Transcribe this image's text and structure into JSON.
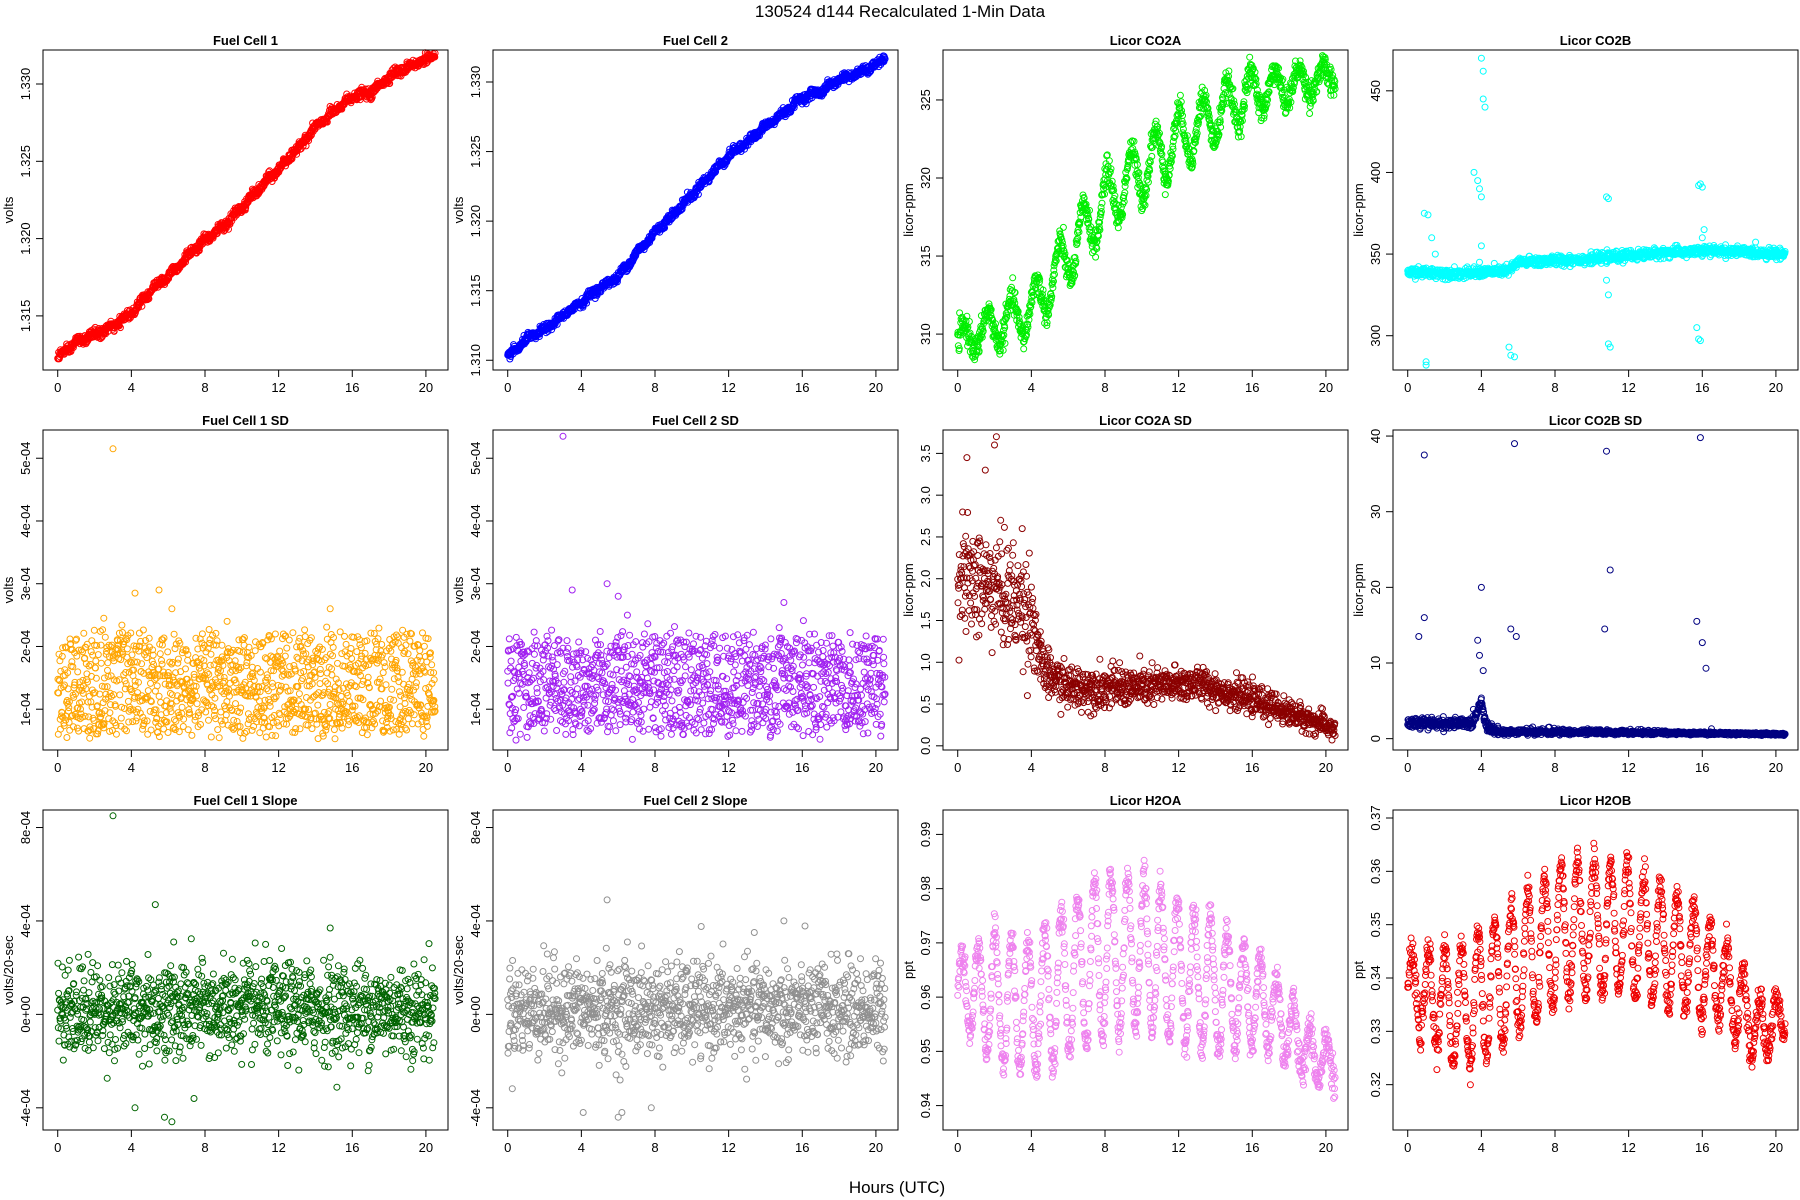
{
  "figure": {
    "title": "130524    d144    Recalculated 1-Min Data",
    "xlabel": "Hours (UTC)"
  },
  "chart_data": [
    {
      "type": "scatter",
      "title": "Fuel Cell 1",
      "ylabel": "volts",
      "color": "#ff0000",
      "xlim": [
        -0.8,
        21.2
      ],
      "ylim": [
        1.3115,
        1.3322
      ],
      "yticks": [
        1.315,
        1.32,
        1.325,
        1.33
      ],
      "ytick_labels": [
        "1.315",
        "1.320",
        "1.325",
        "1.330"
      ],
      "xticks": [
        0,
        4,
        8,
        12,
        16,
        20
      ],
      "xtick_labels": [
        "0",
        "4",
        "8",
        "12",
        "16",
        "20"
      ],
      "pattern": "trend",
      "points": [
        [
          0,
          1.3123
        ],
        [
          1,
          1.3133
        ],
        [
          2,
          1.3138
        ],
        [
          3,
          1.3143
        ],
        [
          4,
          1.3152
        ],
        [
          5,
          1.3166
        ],
        [
          6,
          1.3176
        ],
        [
          7,
          1.3188
        ],
        [
          8,
          1.3199
        ],
        [
          9,
          1.3208
        ],
        [
          10,
          1.322
        ],
        [
          11,
          1.3233
        ],
        [
          12,
          1.3245
        ],
        [
          13,
          1.3258
        ],
        [
          14,
          1.3272
        ],
        [
          15,
          1.3282
        ],
        [
          16,
          1.3292
        ],
        [
          17,
          1.3294
        ],
        [
          18,
          1.3305
        ],
        [
          19,
          1.3311
        ],
        [
          20,
          1.3316
        ],
        [
          20.5,
          1.3318
        ]
      ],
      "noise": 0.0003
    },
    {
      "type": "scatter",
      "title": "Fuel Cell 2",
      "ylabel": "volts",
      "color": "#0000ff",
      "xlim": [
        -0.8,
        21.2
      ],
      "ylim": [
        1.3093,
        1.3323
      ],
      "yticks": [
        1.31,
        1.315,
        1.32,
        1.325,
        1.33
      ],
      "ytick_labels": [
        "1.310",
        "1.315",
        "1.320",
        "1.325",
        "1.330"
      ],
      "xticks": [
        0,
        4,
        8,
        12,
        16,
        20
      ],
      "xtick_labels": [
        "0",
        "4",
        "8",
        "12",
        "16",
        "20"
      ],
      "pattern": "trend",
      "points": [
        [
          0,
          1.3102
        ],
        [
          1,
          1.3115
        ],
        [
          2,
          1.3122
        ],
        [
          3,
          1.3132
        ],
        [
          4,
          1.3142
        ],
        [
          5,
          1.3152
        ],
        [
          6,
          1.316
        ],
        [
          7,
          1.3177
        ],
        [
          8,
          1.3192
        ],
        [
          9,
          1.3205
        ],
        [
          10,
          1.3219
        ],
        [
          11,
          1.3233
        ],
        [
          12,
          1.3247
        ],
        [
          13,
          1.3257
        ],
        [
          14,
          1.3268
        ],
        [
          15,
          1.3278
        ],
        [
          16,
          1.3289
        ],
        [
          17,
          1.3293
        ],
        [
          18,
          1.3302
        ],
        [
          19,
          1.3306
        ],
        [
          20,
          1.3312
        ],
        [
          20.5,
          1.3318
        ]
      ],
      "noise": 0.0003
    },
    {
      "type": "scatter",
      "title": "Licor CO2A",
      "ylabel": "licor-ppm",
      "color": "#00ee00",
      "xlim": [
        -0.8,
        21.2
      ],
      "ylim": [
        307.7,
        328.2
      ],
      "yticks": [
        310,
        315,
        320,
        325
      ],
      "ytick_labels": [
        "310",
        "315",
        "320",
        "325"
      ],
      "xticks": [
        0,
        4,
        8,
        12,
        16,
        20
      ],
      "xtick_labels": [
        "0",
        "4",
        "8",
        "12",
        "16",
        "20"
      ],
      "pattern": "osc",
      "base": [
        [
          0,
          309.5
        ],
        [
          4,
          311.5
        ],
        [
          8,
          318.5
        ],
        [
          12,
          322.5
        ],
        [
          16,
          325.5
        ],
        [
          20.5,
          326.5
        ]
      ],
      "amp": [
        [
          0,
          0.8
        ],
        [
          2,
          1.2
        ],
        [
          4,
          1.5
        ],
        [
          8,
          1.9
        ],
        [
          12,
          1.8
        ],
        [
          16,
          1.4
        ],
        [
          20.5,
          0.6
        ]
      ],
      "period": 1.3,
      "noise": 0.4
    },
    {
      "type": "scatter",
      "title": "Licor CO2B",
      "ylabel": "licor-ppm",
      "color": "#00ffff",
      "xlim": [
        -0.8,
        21.2
      ],
      "ylim": [
        279,
        475
      ],
      "yticks": [
        300,
        350,
        400,
        450
      ],
      "ytick_labels": [
        "300",
        "350",
        "400",
        "450"
      ],
      "xticks": [
        0,
        4,
        8,
        12,
        16,
        20
      ],
      "xtick_labels": [
        "0",
        "4",
        "8",
        "12",
        "16",
        "20"
      ],
      "pattern": "spiky",
      "base": [
        [
          0,
          339
        ],
        [
          3,
          338
        ],
        [
          5.5,
          340
        ],
        [
          6,
          345
        ],
        [
          10,
          347
        ],
        [
          14,
          351
        ],
        [
          17,
          352
        ],
        [
          20.5,
          350
        ]
      ],
      "noise": 1.5,
      "outliers": [
        [
          1.0,
          284
        ],
        [
          1.0,
          282
        ],
        [
          0.9,
          375
        ],
        [
          1.1,
          374
        ],
        [
          1.3,
          360
        ],
        [
          1.5,
          350
        ],
        [
          3.6,
          400
        ],
        [
          3.8,
          395
        ],
        [
          3.9,
          390
        ],
        [
          4.0,
          385
        ],
        [
          4.0,
          470
        ],
        [
          4.1,
          462
        ],
        [
          4.1,
          445
        ],
        [
          4.2,
          440
        ],
        [
          4.0,
          355
        ],
        [
          3.9,
          345
        ],
        [
          5.5,
          293
        ],
        [
          5.6,
          288
        ],
        [
          5.8,
          287
        ],
        [
          10.8,
          385
        ],
        [
          10.9,
          384
        ],
        [
          10.8,
          334
        ],
        [
          10.9,
          325
        ],
        [
          10.9,
          295
        ],
        [
          11.0,
          293
        ],
        [
          15.8,
          392
        ],
        [
          15.9,
          393
        ],
        [
          16.0,
          391
        ],
        [
          15.7,
          305
        ],
        [
          15.8,
          298
        ],
        [
          15.9,
          297
        ],
        [
          16.1,
          365
        ],
        [
          16.0,
          360
        ]
      ]
    },
    {
      "type": "scatter",
      "title": "Fuel Cell 1 SD",
      "ylabel": "volts",
      "color": "#ffa500",
      "xlim": [
        -0.8,
        21.2
      ],
      "ylim": [
        3.5e-05,
        0.000545
      ],
      "yticks": [
        0.0001,
        0.0002,
        0.0003,
        0.0004,
        0.0005
      ],
      "ytick_labels": [
        "1e-04",
        "2e-04",
        "3e-04",
        "4e-04",
        "5e-04"
      ],
      "xticks": [
        0,
        4,
        8,
        12,
        16,
        20
      ],
      "xtick_labels": [
        "0",
        "4",
        "8",
        "12",
        "16",
        "20"
      ],
      "pattern": "band",
      "lo": 5e-05,
      "hi": 0.00021,
      "center": 0.00014,
      "outliers": [
        [
          3.0,
          0.000515
        ],
        [
          4.2,
          0.000285
        ],
        [
          5.5,
          0.00029
        ],
        [
          6.2,
          0.00026
        ],
        [
          14.8,
          0.00026
        ],
        [
          9.2,
          0.00024
        ],
        [
          2.5,
          0.000245
        ]
      ]
    },
    {
      "type": "scatter",
      "title": "Fuel Cell 2 SD",
      "ylabel": "volts",
      "color": "#a020f0",
      "xlim": [
        -0.8,
        21.2
      ],
      "ylim": [
        3.5e-05,
        0.000545
      ],
      "yticks": [
        0.0001,
        0.0002,
        0.0003,
        0.0004,
        0.0005
      ],
      "ytick_labels": [
        "1e-04",
        "2e-04",
        "3e-04",
        "4e-04",
        "5e-04"
      ],
      "xticks": [
        0,
        4,
        8,
        12,
        16,
        20
      ],
      "xtick_labels": [
        "0",
        "4",
        "8",
        "12",
        "16",
        "20"
      ],
      "pattern": "band",
      "lo": 5e-05,
      "hi": 0.00021,
      "center": 0.00014,
      "outliers": [
        [
          3.0,
          0.000535
        ],
        [
          3.5,
          0.00029
        ],
        [
          5.4,
          0.0003
        ],
        [
          6.0,
          0.00028
        ],
        [
          15.0,
          0.00027
        ],
        [
          6.5,
          0.00025
        ]
      ]
    },
    {
      "type": "scatter",
      "title": "Licor CO2A SD",
      "ylabel": "licor-ppm",
      "color": "#8b0000",
      "xlim": [
        -0.8,
        21.2
      ],
      "ylim": [
        -0.05,
        3.78
      ],
      "yticks": [
        0,
        0.5,
        1,
        1.5,
        2,
        2.5,
        3,
        3.5
      ],
      "ytick_labels": [
        "0.0",
        "0.5",
        "1.0",
        "1.5",
        "2.0",
        "2.5",
        "3.0",
        "3.5"
      ],
      "xticks": [
        0,
        4,
        8,
        12,
        16,
        20
      ],
      "xtick_labels": [
        "0",
        "4",
        "8",
        "12",
        "16",
        "20"
      ],
      "pattern": "decay",
      "base": [
        [
          0,
          2.0
        ],
        [
          2,
          1.9
        ],
        [
          4,
          1.6
        ],
        [
          4.6,
          0.9
        ],
        [
          6,
          0.7
        ],
        [
          10,
          0.7
        ],
        [
          13,
          0.75
        ],
        [
          16,
          0.55
        ],
        [
          18,
          0.4
        ],
        [
          20.5,
          0.2
        ]
      ],
      "spread": [
        [
          0,
          0.6
        ],
        [
          4,
          0.6
        ],
        [
          4.6,
          0.25
        ],
        [
          20.5,
          0.12
        ]
      ],
      "outliers": [
        [
          2.0,
          3.6
        ],
        [
          2.1,
          3.7
        ],
        [
          0.5,
          3.45
        ],
        [
          1.5,
          3.3
        ],
        [
          3.5,
          2.6
        ]
      ]
    },
    {
      "type": "scatter",
      "title": "Licor CO2B SD",
      "ylabel": "licor-ppm",
      "color": "#000080",
      "xlim": [
        -0.8,
        21.2
      ],
      "ylim": [
        -1.5,
        40.8
      ],
      "yticks": [
        0,
        10,
        20,
        30,
        40
      ],
      "ytick_labels": [
        "0",
        "10",
        "20",
        "30",
        "40"
      ],
      "xticks": [
        0,
        4,
        8,
        12,
        16,
        20
      ],
      "xtick_labels": [
        "0",
        "4",
        "8",
        "12",
        "16",
        "20"
      ],
      "pattern": "decay",
      "base": [
        [
          0,
          2.0
        ],
        [
          3.5,
          2.0
        ],
        [
          4.0,
          5.0
        ],
        [
          4.3,
          1.5
        ],
        [
          5,
          0.8
        ],
        [
          12,
          0.7
        ],
        [
          20.5,
          0.3
        ]
      ],
      "spread": [
        [
          0,
          0.7
        ],
        [
          20.5,
          0.2
        ]
      ],
      "outliers": [
        [
          0.9,
          37.5
        ],
        [
          0.6,
          13.5
        ],
        [
          0.9,
          16
        ],
        [
          3.8,
          13
        ],
        [
          4.0,
          20
        ],
        [
          3.9,
          11
        ],
        [
          4.1,
          9
        ],
        [
          5.8,
          39
        ],
        [
          5.6,
          14.5
        ],
        [
          5.9,
          13.5
        ],
        [
          10.8,
          38
        ],
        [
          10.7,
          14.5
        ],
        [
          11.0,
          22.3
        ],
        [
          15.9,
          39.8
        ],
        [
          15.7,
          15.5
        ],
        [
          16.0,
          12.7
        ],
        [
          16.2,
          9.3
        ],
        [
          16.5,
          1.3
        ]
      ]
    },
    {
      "type": "scatter",
      "title": "Fuel Cell 1 Slope",
      "ylabel": "volts/20-sec",
      "color": "#006400",
      "xlim": [
        -0.8,
        21.2
      ],
      "ylim": [
        -0.000495,
        0.000875
      ],
      "yticks": [
        -0.0004,
        0,
        0.0004,
        0.0008
      ],
      "ytick_labels": [
        "-4e-04",
        "0e+00",
        "4e-04",
        "8e-04"
      ],
      "xticks": [
        0,
        4,
        8,
        12,
        16,
        20
      ],
      "xtick_labels": [
        "0",
        "4",
        "8",
        "12",
        "16",
        "20"
      ],
      "pattern": "scatter0",
      "center": 2e-05,
      "sd": 0.0001,
      "outliers": [
        [
          3.0,
          0.00085
        ],
        [
          4.2,
          -0.0004
        ],
        [
          5.3,
          0.00047
        ],
        [
          5.8,
          -0.00044
        ],
        [
          6.2,
          -0.00046
        ],
        [
          7.4,
          -0.00036
        ],
        [
          14.8,
          0.00037
        ],
        [
          6.3,
          0.00031
        ]
      ]
    },
    {
      "type": "scatter",
      "title": "Fuel Cell 2 Slope",
      "ylabel": "volts/20-sec",
      "color": "#909090",
      "xlim": [
        -0.8,
        21.2
      ],
      "ylim": [
        -0.000495,
        0.000875
      ],
      "yticks": [
        -0.0004,
        0,
        0.0004,
        0.0008
      ],
      "ytick_labels": [
        "-4e-04",
        "0e+00",
        "4e-04",
        "8e-04"
      ],
      "xticks": [
        0,
        4,
        8,
        12,
        16,
        20
      ],
      "xtick_labels": [
        "0",
        "4",
        "8",
        "12",
        "16",
        "20"
      ],
      "pattern": "scatter0",
      "center": 2e-05,
      "sd": 0.0001,
      "outliers": [
        [
          3.0,
          0.00088
        ],
        [
          4.1,
          -0.00042
        ],
        [
          5.4,
          0.00049
        ],
        [
          6.0,
          -0.00044
        ],
        [
          6.2,
          -0.00042
        ],
        [
          7.8,
          -0.0004
        ],
        [
          15.0,
          0.0004
        ],
        [
          6.5,
          0.00031
        ]
      ]
    },
    {
      "type": "scatter",
      "title": "Licor H2OA",
      "ylabel": "ppt",
      "color": "#ee82ee",
      "xlim": [
        -0.8,
        21.2
      ],
      "ylim": [
        0.9355,
        0.9945
      ],
      "yticks": [
        0.94,
        0.95,
        0.96,
        0.97,
        0.98,
        0.99
      ],
      "ytick_labels": [
        "0.94",
        "0.95",
        "0.96",
        "0.97",
        "0.98",
        "0.99"
      ],
      "xticks": [
        0,
        4,
        8,
        12,
        16,
        20
      ],
      "xtick_labels": [
        "0",
        "4",
        "8",
        "12",
        "16",
        "20"
      ],
      "pattern": "osc",
      "base": [
        [
          0,
          0.962
        ],
        [
          4,
          0.958
        ],
        [
          8,
          0.968
        ],
        [
          10,
          0.968
        ],
        [
          14,
          0.962
        ],
        [
          17,
          0.958
        ],
        [
          19,
          0.95
        ],
        [
          20.5,
          0.948
        ]
      ],
      "amp": [
        [
          0,
          0.006
        ],
        [
          2,
          0.012
        ],
        [
          4,
          0.012
        ],
        [
          8,
          0.015
        ],
        [
          10,
          0.014
        ],
        [
          14,
          0.012
        ],
        [
          18,
          0.006
        ],
        [
          20.5,
          0.004
        ]
      ],
      "period": 0.9,
      "noise": 0.0015
    },
    {
      "type": "scatter",
      "title": "Licor H2OB",
      "ylabel": "ppt",
      "color": "#ee0000",
      "xlim": [
        -0.8,
        21.2
      ],
      "ylim": [
        0.3115,
        0.3715
      ],
      "yticks": [
        0.32,
        0.33,
        0.34,
        0.35,
        0.36,
        0.37
      ],
      "ytick_labels": [
        "0.32",
        "0.33",
        "0.34",
        "0.35",
        "0.36",
        "0.37"
      ],
      "xticks": [
        0,
        4,
        8,
        12,
        16,
        20
      ],
      "xtick_labels": [
        "0",
        "4",
        "8",
        "12",
        "16",
        "20"
      ],
      "pattern": "osc",
      "base": [
        [
          0,
          0.338
        ],
        [
          3,
          0.334
        ],
        [
          6,
          0.342
        ],
        [
          9,
          0.35
        ],
        [
          12,
          0.349
        ],
        [
          15,
          0.344
        ],
        [
          17,
          0.34
        ],
        [
          19,
          0.33
        ],
        [
          20.5,
          0.333
        ]
      ],
      "amp": [
        [
          0,
          0.006
        ],
        [
          3,
          0.012
        ],
        [
          8,
          0.013
        ],
        [
          12,
          0.012
        ],
        [
          16,
          0.01
        ],
        [
          19,
          0.006
        ],
        [
          20.5,
          0.003
        ]
      ],
      "period": 0.9,
      "noise": 0.0014
    }
  ]
}
